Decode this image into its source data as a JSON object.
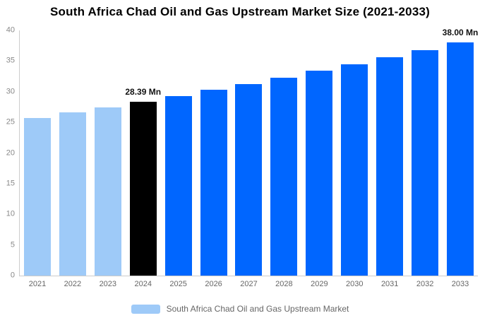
{
  "chart_data": {
    "type": "bar",
    "title": "South Africa Chad Oil and Gas Upstream Market Size (2021-2033)",
    "unit": "Mn",
    "categories": [
      "2021",
      "2022",
      "2023",
      "2024",
      "2025",
      "2026",
      "2027",
      "2028",
      "2029",
      "2030",
      "2031",
      "2032",
      "2033"
    ],
    "values": [
      25.75,
      26.6,
      27.47,
      28.39,
      29.32,
      30.29,
      31.29,
      32.32,
      33.38,
      34.48,
      35.62,
      36.79,
      38.0
    ],
    "data_labels": [
      null,
      null,
      null,
      "28.39 Mn",
      null,
      null,
      null,
      null,
      null,
      null,
      null,
      null,
      "38.00 Mn"
    ],
    "bar_colors": [
      "light",
      "light",
      "light",
      "black",
      "blue",
      "blue",
      "blue",
      "blue",
      "blue",
      "blue",
      "blue",
      "blue",
      "blue"
    ],
    "colors": {
      "light": "#9ECAF8",
      "black": "#000000",
      "blue": "#0066FF"
    },
    "xlabel": "",
    "ylabel": "",
    "ylim": [
      0,
      40
    ],
    "yticks": [
      0,
      5,
      10,
      15,
      20,
      25,
      30,
      35,
      40
    ],
    "grid": false,
    "axis_line_color": "#cccccc",
    "legend": {
      "position": "bottom",
      "items": [
        {
          "label": "South Africa Chad Oil and Gas Upstream Market",
          "swatch_color": "#9ECAF8"
        }
      ]
    }
  }
}
